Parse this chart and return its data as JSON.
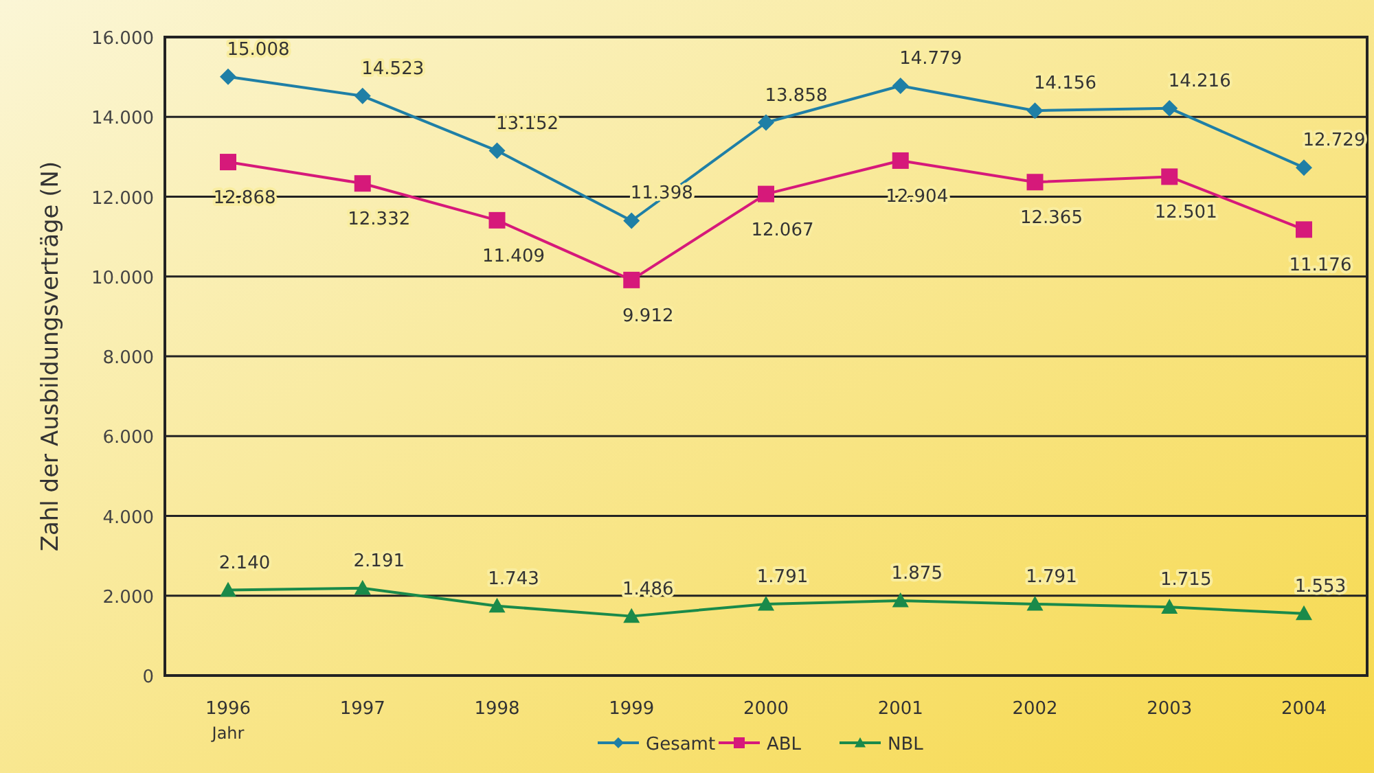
{
  "chart_data": {
    "type": "line",
    "ylabel": "Zahl der Ausbildungsverträge (N)",
    "xlabel": "Jahr",
    "categories": [
      "1996",
      "1997",
      "1998",
      "1999",
      "2000",
      "2001",
      "2002",
      "2003",
      "2004"
    ],
    "series": [
      {
        "name": "Gesamt",
        "color": "#1f7fa6",
        "marker": "diamond",
        "values": [
          15008,
          14523,
          13152,
          11398,
          13858,
          14779,
          14156,
          14216,
          12729
        ],
        "value_labels": [
          "15.008",
          "14.523",
          "13.152",
          "11.398",
          "13.858",
          "14.779",
          "14.156",
          "14.216",
          "12.729"
        ]
      },
      {
        "name": "ABL",
        "color": "#d6197a",
        "marker": "square",
        "values": [
          12868,
          12332,
          11409,
          9912,
          12067,
          12904,
          12365,
          12501,
          11176
        ],
        "value_labels": [
          "12.868",
          "12.332",
          "11.409",
          "9.912",
          "12.067",
          "12.904",
          "12.365",
          "12.501",
          "11.176"
        ]
      },
      {
        "name": "NBL",
        "color": "#1a8a4a",
        "marker": "triangle",
        "values": [
          2140,
          2191,
          1743,
          1486,
          1791,
          1875,
          1791,
          1715,
          1553
        ],
        "value_labels": [
          "2.140",
          "2.191",
          "1.743",
          "1.486",
          "1.791",
          "1.875",
          "1.791",
          "1.715",
          "1.553"
        ]
      }
    ],
    "ylim": [
      0,
      16000
    ],
    "yticks": [
      {
        "value": 0,
        "label": "0"
      },
      {
        "value": 2000,
        "label": "2.000"
      },
      {
        "value": 4000,
        "label": "4.000"
      },
      {
        "value": 6000,
        "label": "6.000"
      },
      {
        "value": 8000,
        "label": "8.000"
      },
      {
        "value": 10000,
        "label": "10.000"
      },
      {
        "value": 12000,
        "label": "12.000"
      },
      {
        "value": 14000,
        "label": "14.000"
      },
      {
        "value": 16000,
        "label": "16.000"
      }
    ],
    "grid": "y",
    "legend": "bottom",
    "line_style": "solid"
  }
}
